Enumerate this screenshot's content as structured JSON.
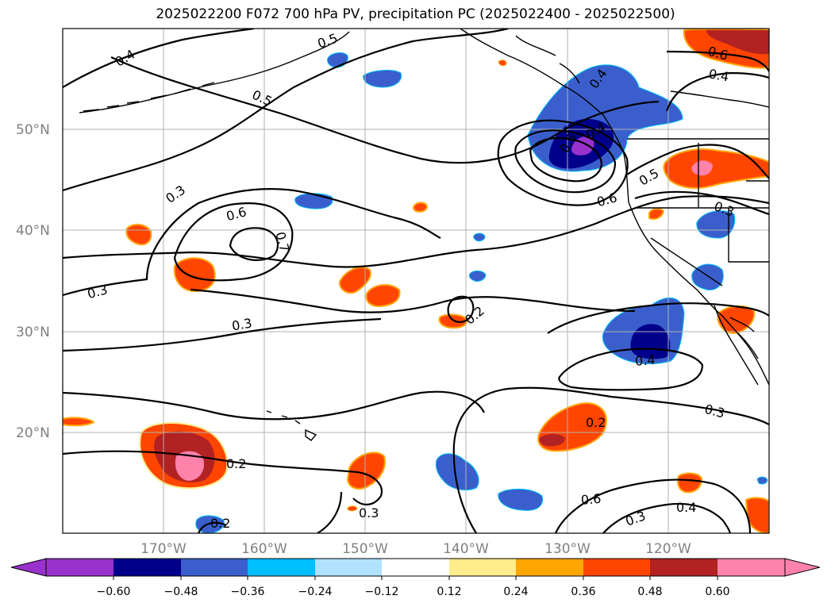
{
  "title": "2025022200 F072 700 hPa PV, precipitation PC (2025022400 - 2025022500)",
  "map": {
    "lat_ticks": [
      "50°N",
      "40°N",
      "30°N",
      "20°N"
    ],
    "lon_ticks": [
      "170°W",
      "160°W",
      "150°W",
      "140°W",
      "130°W",
      "120°W"
    ],
    "contour_labels": [
      "0.4",
      "0.5",
      "0.5",
      "0.3",
      "0.6",
      "0.7",
      "0.3",
      "0.3",
      "0.2",
      "0.2",
      "0.2",
      "0.3",
      "0.4",
      "0.5",
      "0.6",
      "0.4",
      "0.5",
      "0.6",
      "0.3",
      "0.4",
      "0.4",
      "0.3",
      "0.2",
      "0.3",
      "0.4",
      "0.6"
    ],
    "contour_line_color": "#000000",
    "coast_color": "#000000",
    "grid_color": "#b0b0b0"
  },
  "colorbar": {
    "tick_labels": [
      "−0.60",
      "−0.48",
      "−0.36",
      "−0.24",
      "−0.12",
      "0.12",
      "0.24",
      "0.36",
      "0.48",
      "0.60"
    ],
    "colors": [
      "#9932cc",
      "#00008b",
      "#3a5fcd",
      "#00bfff",
      "#b0e2ff",
      "#ffffff",
      "#ffec8b",
      "#ffa500",
      "#ff4500",
      "#b22222",
      "#ff82ab"
    ]
  }
}
